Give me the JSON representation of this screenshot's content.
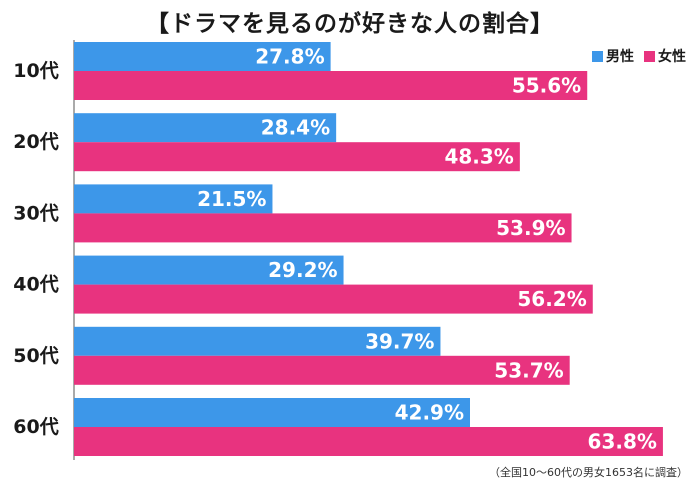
{
  "chart_data": {
    "type": "bar",
    "orientation": "horizontal",
    "title": "【ドラマを見るのが好きな人の割合】",
    "categories": [
      "10代",
      "20代",
      "30代",
      "40代",
      "50代",
      "60代"
    ],
    "series": [
      {
        "name": "男性",
        "color": "#3d97e9",
        "values": [
          27.8,
          28.4,
          21.5,
          29.2,
          39.7,
          42.9
        ],
        "labels": [
          "27.8%",
          "28.4%",
          "21.5%",
          "29.2%",
          "39.7%",
          "42.9%"
        ]
      },
      {
        "name": "女性",
        "color": "#e8337f",
        "values": [
          55.6,
          48.3,
          53.9,
          56.2,
          53.7,
          63.8
        ],
        "labels": [
          "55.6%",
          "48.3%",
          "53.9%",
          "56.2%",
          "53.7%",
          "63.8%"
        ]
      }
    ],
    "xlim": [
      0,
      65
    ],
    "grid": false,
    "legend_position": "top-right"
  },
  "note": "（全国10～60代の男女1653名に調査）"
}
